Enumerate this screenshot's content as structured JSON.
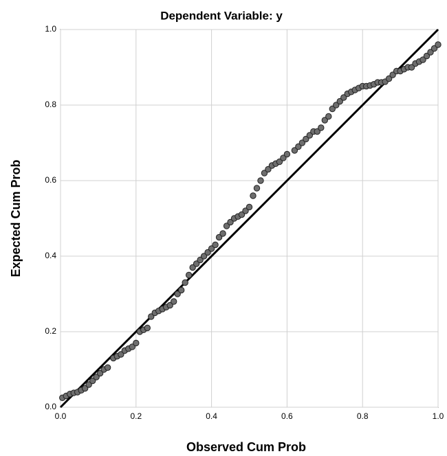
{
  "chart_data": {
    "type": "scatter",
    "title": "Dependent Variable: y",
    "x_label": "Observed Cum Prob",
    "y_label": "Expected Cum Prob",
    "xlim": [
      0,
      1
    ],
    "ylim": [
      0,
      1
    ],
    "xticks": [
      {
        "value": 0,
        "label": "0.0"
      },
      0.2,
      0.4,
      0.6,
      0.8,
      {
        "value": 1,
        "label": "1.0"
      }
    ],
    "yticks": [
      {
        "value": 0,
        "label": "0.0"
      },
      0.2,
      0.4,
      0.6,
      0.8,
      {
        "value": 1,
        "label": "1.0"
      }
    ],
    "grid": true,
    "reference_line": true,
    "color": "#6e6e6e",
    "x": [
      0.005,
      0.015,
      0.025,
      0.035,
      0.045,
      0.055,
      0.065,
      0.075,
      0.085,
      0.095,
      0.105,
      0.115,
      0.125,
      0.14,
      0.15,
      0.16,
      0.17,
      0.18,
      0.19,
      0.2,
      0.21,
      0.22,
      0.23,
      0.24,
      0.25,
      0.26,
      0.27,
      0.28,
      0.29,
      0.3,
      0.31,
      0.32,
      0.33,
      0.34,
      0.35,
      0.36,
      0.37,
      0.38,
      0.39,
      0.4,
      0.41,
      0.42,
      0.43,
      0.44,
      0.45,
      0.46,
      0.47,
      0.48,
      0.49,
      0.5,
      0.51,
      0.52,
      0.53,
      0.54,
      0.55,
      0.56,
      0.57,
      0.58,
      0.59,
      0.6,
      0.62,
      0.63,
      0.64,
      0.65,
      0.66,
      0.67,
      0.68,
      0.69,
      0.7,
      0.71,
      0.72,
      0.73,
      0.74,
      0.75,
      0.76,
      0.77,
      0.78,
      0.79,
      0.8,
      0.81,
      0.82,
      0.83,
      0.84,
      0.85,
      0.86,
      0.87,
      0.88,
      0.89,
      0.9,
      0.91,
      0.92,
      0.93,
      0.94,
      0.95,
      0.96,
      0.97,
      0.98,
      0.99,
      1.0
    ],
    "values": [
      0.025,
      0.03,
      0.035,
      0.038,
      0.04,
      0.045,
      0.05,
      0.06,
      0.07,
      0.08,
      0.09,
      0.1,
      0.105,
      0.13,
      0.135,
      0.14,
      0.15,
      0.155,
      0.16,
      0.17,
      0.2,
      0.205,
      0.21,
      0.24,
      0.25,
      0.255,
      0.26,
      0.265,
      0.27,
      0.28,
      0.3,
      0.31,
      0.33,
      0.35,
      0.37,
      0.38,
      0.39,
      0.4,
      0.41,
      0.42,
      0.43,
      0.45,
      0.46,
      0.48,
      0.49,
      0.5,
      0.505,
      0.51,
      0.52,
      0.53,
      0.56,
      0.58,
      0.6,
      0.62,
      0.63,
      0.64,
      0.645,
      0.65,
      0.66,
      0.67,
      0.68,
      0.69,
      0.7,
      0.71,
      0.72,
      0.73,
      0.73,
      0.74,
      0.76,
      0.77,
      0.79,
      0.8,
      0.81,
      0.82,
      0.83,
      0.835,
      0.84,
      0.845,
      0.85,
      0.85,
      0.852,
      0.855,
      0.86,
      0.86,
      0.862,
      0.87,
      0.88,
      0.89,
      0.89,
      0.895,
      0.9,
      0.9,
      0.91,
      0.915,
      0.92,
      0.93,
      0.94,
      0.95,
      0.96
    ]
  }
}
